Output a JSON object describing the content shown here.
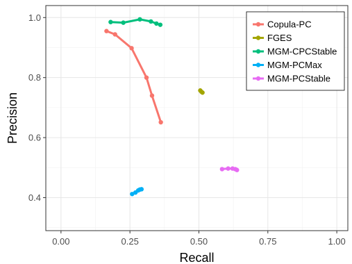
{
  "chart_data": {
    "type": "line",
    "xlabel": "Recall",
    "ylabel": "Precision",
    "xlim": [
      -0.055,
      1.04
    ],
    "ylim": [
      0.29,
      1.04
    ],
    "x_ticks": [
      0.0,
      0.25,
      0.5,
      0.75,
      1.0
    ],
    "x_tick_labels": [
      "0.00",
      "0.25",
      "0.50",
      "0.75",
      "1.00"
    ],
    "y_ticks": [
      0.4,
      0.6,
      0.8,
      1.0
    ],
    "y_tick_labels": [
      "0.4",
      "0.6",
      "0.8",
      "1.0"
    ],
    "grid": true,
    "legend_position": "top-right",
    "series": [
      {
        "name": "Copula-PC",
        "color": "#F8766D",
        "points": [
          [
            0.165,
            0.955
          ],
          [
            0.196,
            0.944
          ],
          [
            0.256,
            0.898
          ],
          [
            0.31,
            0.8
          ],
          [
            0.33,
            0.74
          ],
          [
            0.362,
            0.651
          ]
        ]
      },
      {
        "name": "FGES",
        "color": "#A3A500",
        "points": [
          [
            0.505,
            0.757
          ],
          [
            0.509,
            0.753
          ],
          [
            0.513,
            0.75
          ]
        ]
      },
      {
        "name": "MGM-CPCStable",
        "color": "#00BF7D",
        "points": [
          [
            0.18,
            0.985
          ],
          [
            0.226,
            0.983
          ],
          [
            0.286,
            0.994
          ],
          [
            0.326,
            0.987
          ],
          [
            0.346,
            0.98
          ],
          [
            0.36,
            0.976
          ]
        ]
      },
      {
        "name": "MGM-PCMax",
        "color": "#00B0F6",
        "points": [
          [
            0.258,
            0.412
          ],
          [
            0.27,
            0.417
          ],
          [
            0.28,
            0.424
          ],
          [
            0.286,
            0.427
          ],
          [
            0.292,
            0.428
          ]
        ]
      },
      {
        "name": "MGM-PCStable",
        "color": "#E76BF3",
        "points": [
          [
            0.584,
            0.495
          ],
          [
            0.606,
            0.497
          ],
          [
            0.622,
            0.497
          ],
          [
            0.632,
            0.495
          ],
          [
            0.638,
            0.492
          ]
        ]
      }
    ]
  }
}
